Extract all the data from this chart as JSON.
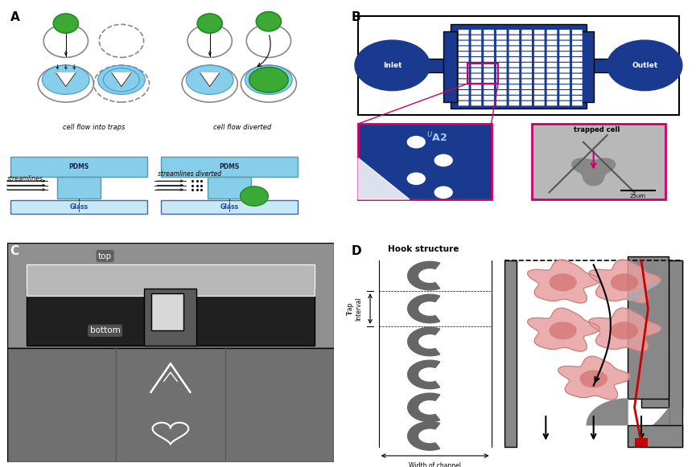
{
  "panel_labels": [
    "A",
    "B",
    "C",
    "D"
  ],
  "panel_A": {
    "cell_flow_into_traps": "cell flow into traps",
    "cell_flow_diverted": "cell flow diverted",
    "pdms_label": "PDMS",
    "streamlines_label": "streamlines",
    "streamlines_diverted_label": "streamlines diverted",
    "glass_label": "Glass",
    "cell_color": "#3aaa35",
    "cell_edge": "#228822",
    "trap_color": "#87CEEB",
    "glass_color": "#c8e8f8",
    "bg_color": "white"
  },
  "panel_B": {
    "inlet_label": "Inlet",
    "outlet_label": "Outlet",
    "ua2_label": "UA2",
    "trapped_cell_label": "trapped cell",
    "scale_label": "25um",
    "blue_color": "#1a3a8f",
    "border_color": "#cc0066",
    "mag_bg": "#c0c0c0"
  },
  "panel_C": {
    "top_label": "top",
    "bottom_label": "bottom",
    "upper_bg": "#909090",
    "lower_bg": "#707070",
    "bar_color": "#b8b8b8",
    "dark_color": "#202020",
    "pillar_color": "#d8d8d8"
  },
  "panel_D": {
    "hook_structure_label": "Hook structure",
    "trap_interval_label": "Trap Interval",
    "width_channel_label": "Width of channel",
    "cell_color": "#e8a0a0",
    "cell_center_color": "#d07070",
    "dark_color": "#666666",
    "arrow_color": "#cc0000",
    "channel_color": "#888888"
  }
}
